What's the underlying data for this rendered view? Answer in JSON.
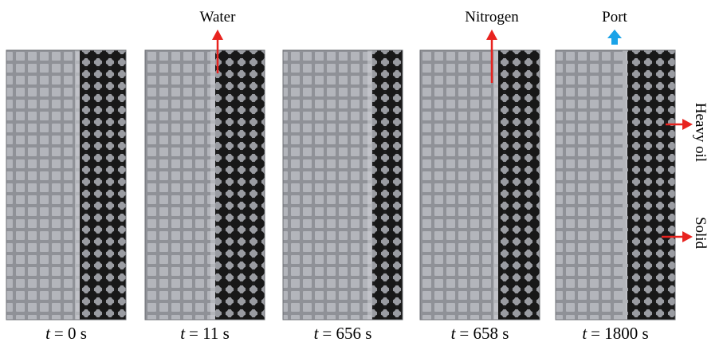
{
  "labels": {
    "water": "Water",
    "nitrogen": "Nitrogen",
    "port": "Port",
    "heavy_oil": "Heavy oil",
    "solid": "Solid"
  },
  "captions": [
    {
      "var": "t",
      "text": "= 0 s"
    },
    {
      "var": "t",
      "text": "= 11 s"
    },
    {
      "var": "t",
      "text": "= 656 s"
    },
    {
      "var": "t",
      "text": "= 658 s"
    },
    {
      "var": "t",
      "text": "= 1800 s"
    }
  ]
}
